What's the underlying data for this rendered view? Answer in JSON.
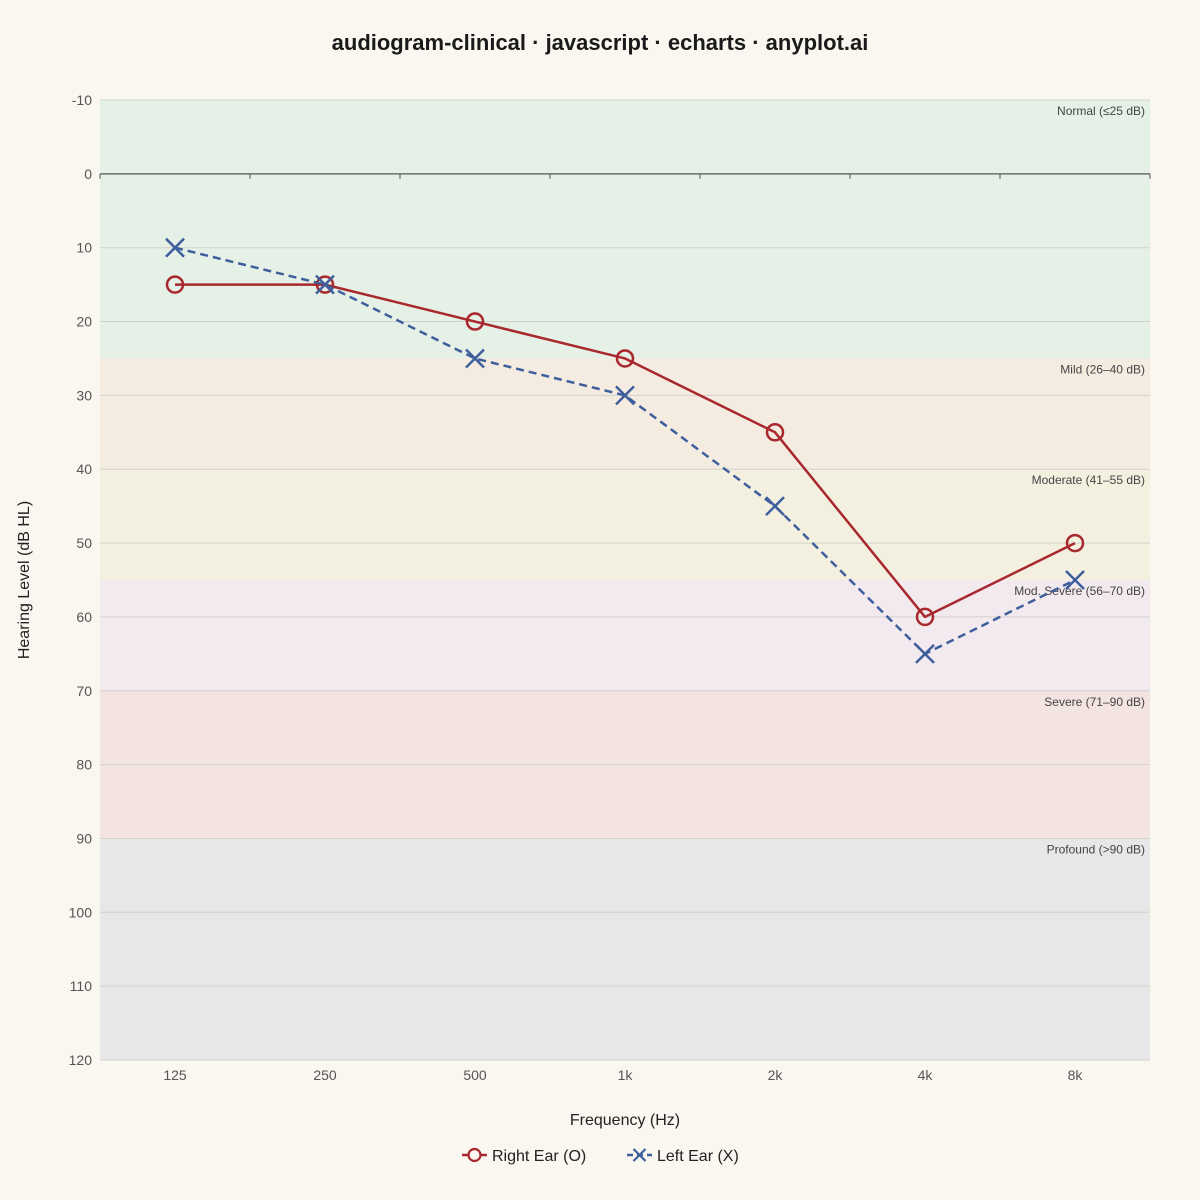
{
  "chart_data": {
    "type": "line",
    "title": "audiogram-clinical · javascript · echarts · anyplot.ai",
    "xlabel": "Frequency (Hz)",
    "ylabel": "Hearing Level (dB HL)",
    "categories": [
      "125",
      "250",
      "500",
      "1k",
      "2k",
      "4k",
      "8k"
    ],
    "ylim": [
      -10,
      120
    ],
    "y_inverted": true,
    "y_ticks": [
      -10,
      0,
      10,
      20,
      30,
      40,
      50,
      60,
      70,
      80,
      90,
      100,
      110,
      120
    ],
    "grid": true,
    "legend_position": "bottom",
    "series": [
      {
        "name": "Right Ear (O)",
        "values": [
          15,
          15,
          20,
          25,
          35,
          60,
          50
        ],
        "color": "#A8282E",
        "marker": "circle",
        "line": "solid"
      },
      {
        "name": "Left Ear (X)",
        "values": [
          10,
          15,
          25,
          30,
          45,
          65,
          55
        ],
        "color": "#3E5E9C",
        "marker": "cross",
        "line": "dashed"
      }
    ],
    "bands": [
      {
        "label": "Normal (≤25 dB)",
        "from": -10,
        "to": 25,
        "color": "#E5F0E6"
      },
      {
        "label": "Mild (26–40 dB)",
        "from": 25,
        "to": 40,
        "color": "#F4ECE1"
      },
      {
        "label": "Moderate (41–55 dB)",
        "from": 40,
        "to": 55,
        "color": "#F4F0E0"
      },
      {
        "label": "Mod. Severe (56–70 dB)",
        "from": 55,
        "to": 70,
        "color": "#F3EAF0"
      },
      {
        "label": "Severe (71–90 dB)",
        "from": 70,
        "to": 90,
        "color": "#F3E3E1"
      },
      {
        "label": "Profound (>90 dB)",
        "from": 90,
        "to": 120,
        "color": "#E6E7E6"
      }
    ]
  }
}
